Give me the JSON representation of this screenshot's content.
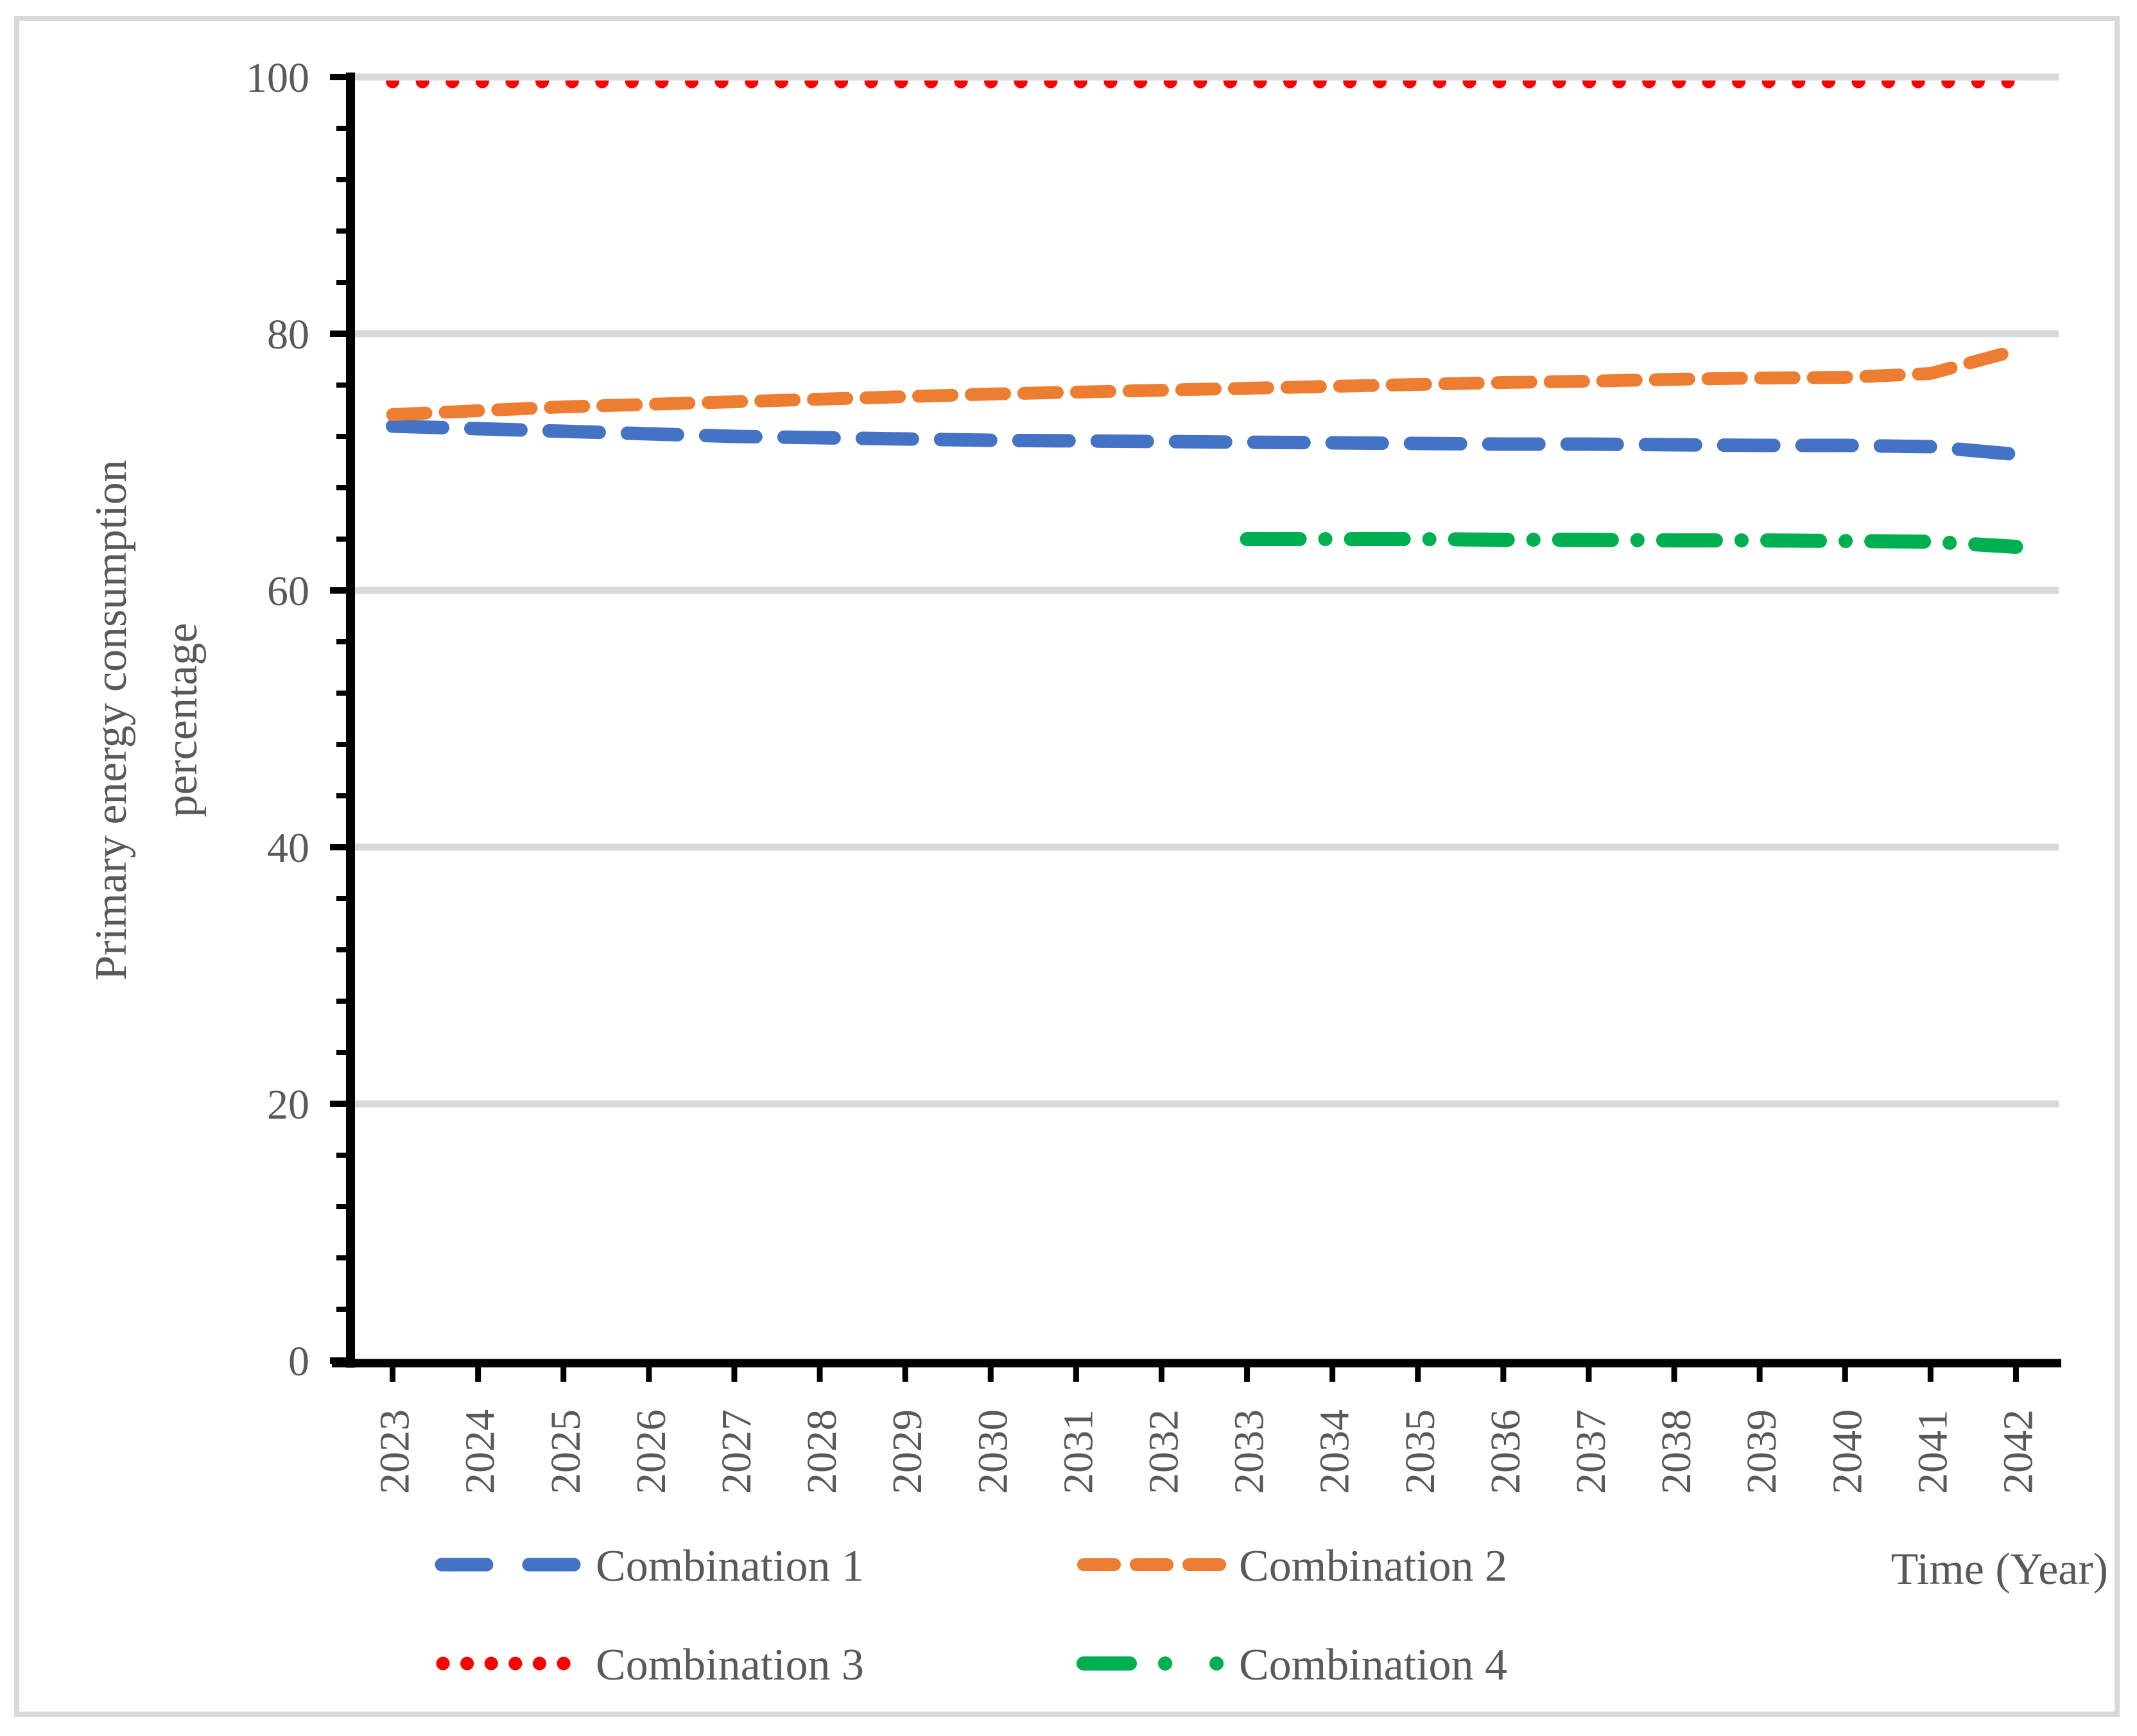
{
  "figure": {
    "background": "#FFFFFF",
    "border_color": "#D9D9D9"
  },
  "chart_data": {
    "type": "line",
    "title": "",
    "xlabel": "Time (Year)",
    "ylabel_lines": [
      "Primary energy consumption",
      "percentage"
    ],
    "categories": [
      "2023",
      "2024",
      "2025",
      "2026",
      "2027",
      "2028",
      "2029",
      "2030",
      "2031",
      "2032",
      "2033",
      "2034",
      "2035",
      "2036",
      "2037",
      "2038",
      "2039",
      "2040",
      "2041",
      "2042"
    ],
    "ylim": [
      0,
      100
    ],
    "y_major_ticks": [
      0,
      20,
      40,
      60,
      80,
      100
    ],
    "y_minor_unit": 4,
    "grid": "horizontal-major",
    "gridline_color": "#D9D9D9",
    "axis_color": "#000000",
    "axis_text_color": "#595959",
    "legend_position": "bottom",
    "series": [
      {
        "name": "Combination 1",
        "color": "#4472C4",
        "dash": "long-dash",
        "values": [
          72.8,
          72.6,
          72.4,
          72.2,
          72.0,
          71.9,
          71.8,
          71.7,
          71.65,
          71.6,
          71.55,
          71.5,
          71.45,
          71.4,
          71.4,
          71.35,
          71.3,
          71.3,
          71.2,
          70.6
        ]
      },
      {
        "name": "Combination 2",
        "color": "#ED7D31",
        "dash": "dash",
        "values": [
          73.7,
          74.0,
          74.3,
          74.5,
          74.7,
          74.9,
          75.1,
          75.3,
          75.45,
          75.6,
          75.75,
          75.9,
          76.05,
          76.2,
          76.3,
          76.45,
          76.55,
          76.6,
          76.9,
          78.7
        ]
      },
      {
        "name": "Combination 3",
        "color": "#FF0000",
        "dash": "dot",
        "values": [
          100,
          100,
          100,
          100,
          100,
          100,
          100,
          100,
          100,
          100,
          100,
          100,
          100,
          100,
          100,
          100,
          100,
          100,
          100,
          100
        ]
      },
      {
        "name": "Combination 4",
        "color": "#00B050",
        "dash": "dash-dot",
        "values": [
          null,
          null,
          null,
          null,
          null,
          null,
          null,
          null,
          null,
          null,
          64.0,
          64.0,
          64.0,
          63.95,
          63.95,
          63.9,
          63.9,
          63.85,
          63.8,
          63.4
        ]
      }
    ]
  }
}
